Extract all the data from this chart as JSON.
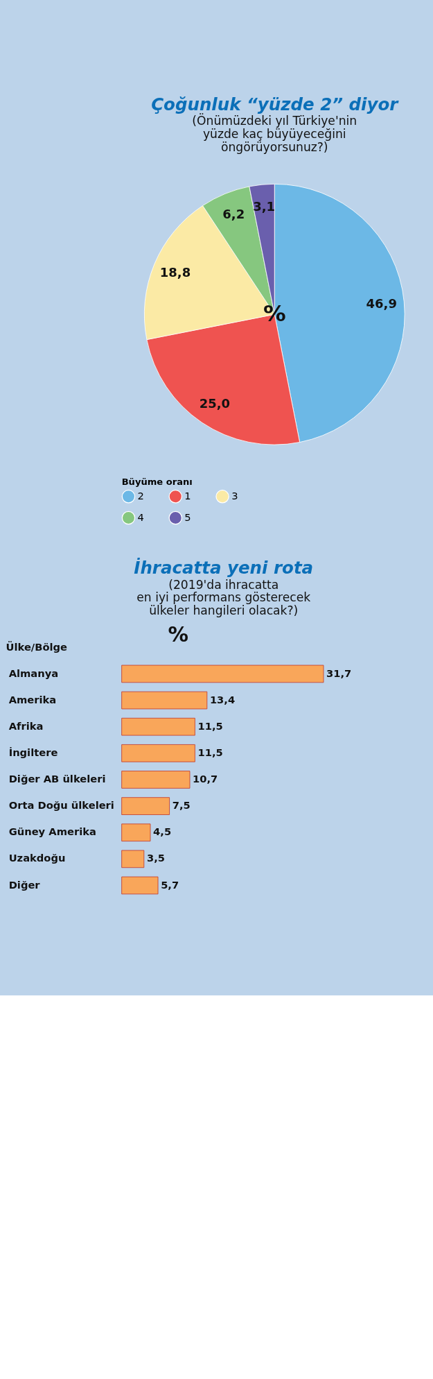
{
  "chart_data": [
    {
      "type": "pie",
      "title": "Çoğunluk “yüzde 2” diyor",
      "subtitle": [
        "(Önümüzdeki yıl Türkiye'nin",
        "yüzde kaç büyüyeceğini",
        "öngörüyorsunuz?)"
      ],
      "categories": [
        "2",
        "1",
        "3",
        "4",
        "5"
      ],
      "values": [
        46.9,
        25.0,
        18.8,
        6.2,
        3.1
      ],
      "colors": [
        "#6cb8e6",
        "#ef5350",
        "#fbeaa5",
        "#86c77f",
        "#6a5fad"
      ],
      "value_labels": [
        "46,9",
        "25,0",
        "18,8",
        "6,2",
        "3,1"
      ],
      "legend_title": "Büyüme oranı",
      "legend": "bottom",
      "annotations": [
        "%"
      ]
    },
    {
      "type": "bar",
      "orientation": "horizontal",
      "title": "İhracatta yeni rota",
      "subtitle": [
        "(2019'da ihracatta",
        "en iyi performans gösterecek",
        "ülkeler hangileri olacak?)"
      ],
      "ylabel": "Ülke/Bölge",
      "categories": [
        "Almanya",
        "Amerika",
        "Afrika",
        "İngiltere",
        "Diğer AB ülkeleri",
        "Orta Doğu ülkeleri",
        "Güney Amerika",
        "Uzakdoğu",
        "Diğer"
      ],
      "values": [
        31.7,
        13.4,
        11.5,
        11.5,
        10.7,
        7.5,
        4.5,
        3.5,
        5.7
      ],
      "value_labels": [
        "31,7",
        "13,4",
        "11,5",
        "11,5",
        "10,7",
        "7,5",
        "4,5",
        "3,5",
        "5,7"
      ],
      "color": "#f9a65a",
      "xlim": [
        0,
        32
      ],
      "annotations": [
        "%"
      ]
    }
  ]
}
